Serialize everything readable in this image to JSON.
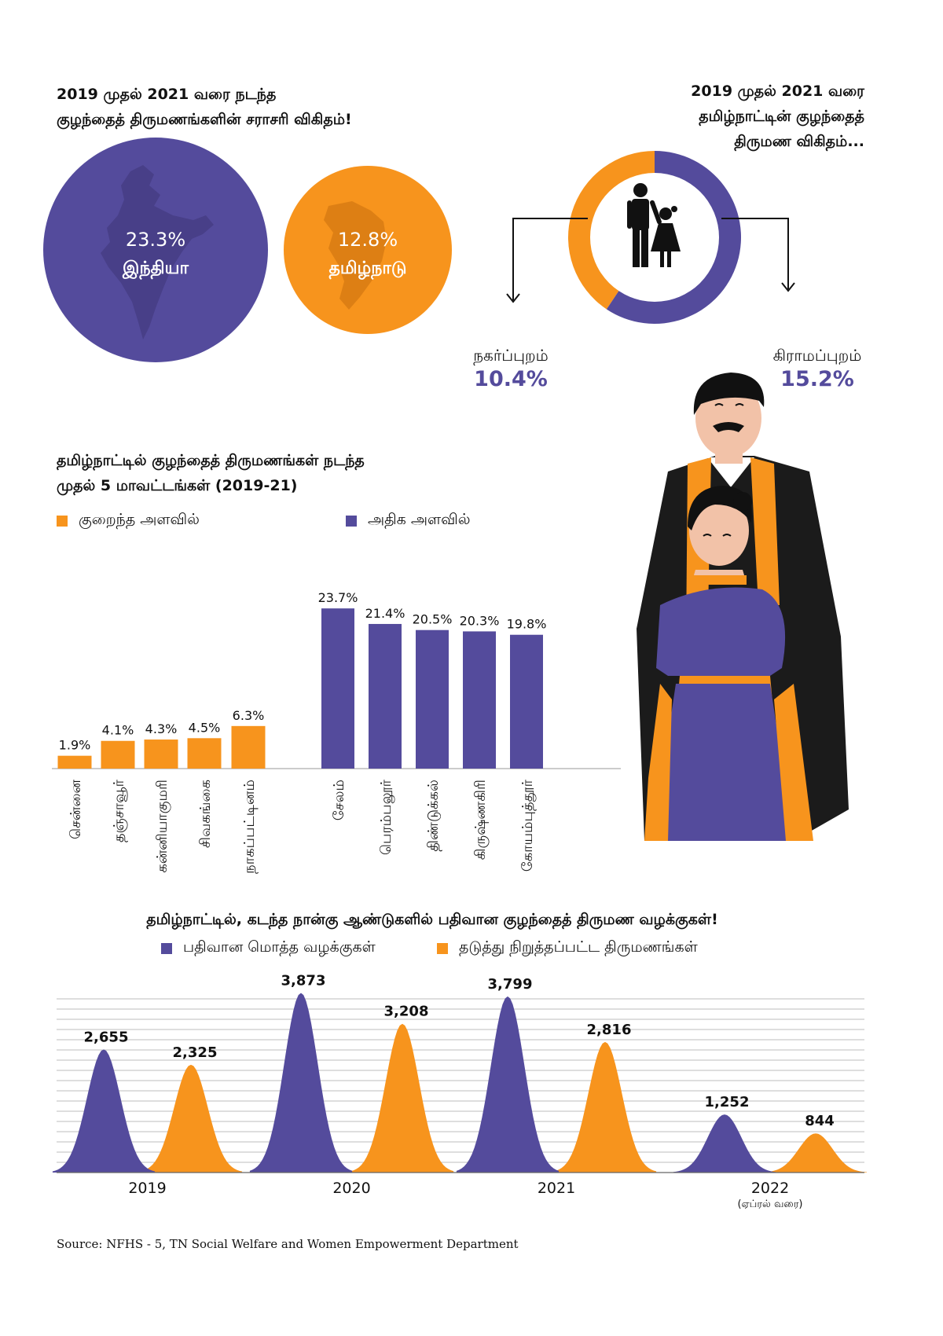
{
  "colors": {
    "purple": "#544b9c",
    "orange": "#f7941d",
    "grid": "#bdbdbd",
    "black": "#111111"
  },
  "avg": {
    "title_line1": "2019 முதல் 2021 வரை நடந்த",
    "title_line2": "குழந்தைத் திருமணங்களின் சராசரி விகிதம்!",
    "india": {
      "value": "23.3%",
      "label": "இந்தியா"
    },
    "tn": {
      "value": "12.8%",
      "label": "தமிழ்நாடு"
    }
  },
  "tn_rate": {
    "title_line1": "2019 முதல் 2021 வரை",
    "title_line2": "தமிழ்நாட்டின் குழந்தைத்",
    "title_line3": "திருமண விகிதம்...",
    "urban": {
      "label": "நகர்ப்புறம்",
      "value": "10.4%"
    },
    "rural": {
      "label": "கிராமப்புறம்",
      "value": "15.2%"
    }
  },
  "districts": {
    "title_line1": "தமிழ்நாட்டில் குழந்தைத் திருமணங்கள் நடந்த",
    "title_line2": "முதல் 5 மாவட்டங்கள் (2019-21)",
    "legend_low": "குறைந்த அளவில்",
    "legend_high": "அதிக அளவில்"
  },
  "cases": {
    "title": "தமிழ்நாட்டில், கடந்த நான்கு ஆண்டுகளில் பதிவான குழந்தைத் திருமண வழக்குகள்!",
    "legend_total": "பதிவான மொத்த வழக்குகள்",
    "legend_stopped": "தடுத்து நிறுத்தப்பட்ட திருமணங்கள்",
    "year_note_2022": "(ஏப்ரல் வரை)"
  },
  "source": "Source: NFHS - 5, TN Social Welfare and Women Empowerment Department",
  "chart_data": [
    {
      "type": "pie",
      "title": "",
      "categories": [
        "நகர்ப்புறம்",
        "கிராமப்புறம்"
      ],
      "values": [
        10.4,
        15.2
      ]
    },
    {
      "type": "bar",
      "title": "தமிழ்நாட்டில் குழந்தைத் திருமணங்கள் நடந்த முதல் 5 மாவட்டங்கள் (2019-21)",
      "categories": [
        "சென்னை",
        "தஞ்சாவூர்",
        "கன்னியாகுமரி",
        "சிவகங்கை",
        "நாகப்பட்டினம்",
        "சேலம்",
        "பெரம்பலூர்",
        "திண்டுக்கல்",
        "கிருஷ்ணகிரி",
        "கோயம்புத்தூர்"
      ],
      "series": [
        {
          "name": "குறைந்த அளவில்",
          "values": [
            1.9,
            4.1,
            4.3,
            4.5,
            6.3,
            null,
            null,
            null,
            null,
            null
          ],
          "labels": [
            "1.9%",
            "4.1%",
            "4.3%",
            "4.5%",
            "6.3%",
            "",
            "",
            "",
            "",
            ""
          ]
        },
        {
          "name": "அதிக அளவில்",
          "values": [
            null,
            null,
            null,
            null,
            null,
            23.7,
            21.4,
            20.5,
            20.3,
            19.8
          ],
          "labels": [
            "",
            "",
            "",
            "",
            "",
            "23.7%",
            "21.4%",
            "20.5%",
            "20.3%",
            "19.8%"
          ]
        }
      ],
      "ylim": [
        0,
        25
      ]
    },
    {
      "type": "area",
      "title": "தமிழ்நாட்டில், கடந்த நான்கு ஆண்டுகளில் பதிவான குழந்தைத் திருமண வழக்குகள்!",
      "categories": [
        "2019",
        "2020",
        "2021",
        "2022"
      ],
      "series": [
        {
          "name": "பதிவான மொத்த வழக்குகள்",
          "values": [
            2655,
            3873,
            3799,
            1252
          ],
          "labels": [
            "2,655",
            "3,873",
            "3,799",
            "1,252"
          ]
        },
        {
          "name": "தடுத்து நிறுத்தப்பட்ட திருமணங்கள்",
          "values": [
            2325,
            3208,
            2816,
            844
          ],
          "labels": [
            "2,325",
            "3,208",
            "2,816",
            "844"
          ]
        }
      ],
      "ylim": [
        0,
        4000
      ],
      "grid": true
    }
  ]
}
